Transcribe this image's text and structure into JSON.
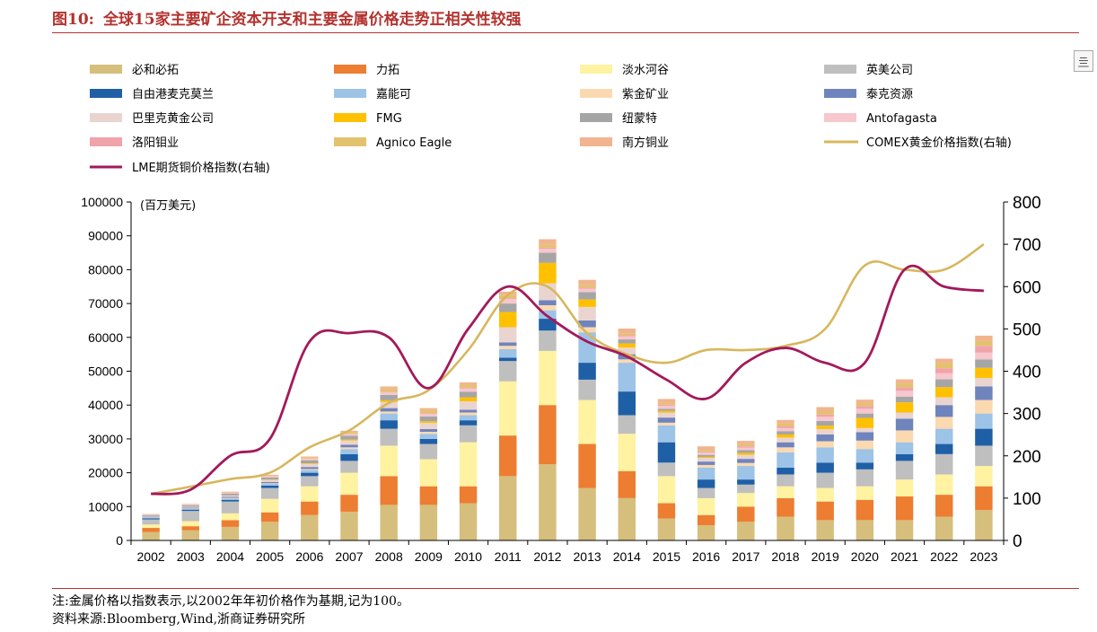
{
  "header": {
    "figure_number": "图10:",
    "title": "全球15家主要矿企资本开支和主要金属价格走势正相关性较强"
  },
  "footer": {
    "note": "注:金属价格以指数表示,以2002年年初价格作为基期,记为100。",
    "source": "资料来源:Bloomberg,Wind,浙商证券研究所"
  },
  "corner_icon": {
    "name": "expand-icon",
    "glyph": "亖"
  },
  "chart_data": {
    "type": "bar",
    "stacked": true,
    "categories": [
      "2002",
      "2003",
      "2004",
      "2005",
      "2006",
      "2007",
      "2008",
      "2009",
      "2010",
      "2011",
      "2012",
      "2013",
      "2014",
      "2015",
      "2016",
      "2017",
      "2018",
      "2019",
      "2020",
      "2021",
      "2022",
      "2023"
    ],
    "ylabel": "(百万美元)",
    "ylim": [
      0,
      100000
    ],
    "yticks": [
      0,
      10000,
      20000,
      30000,
      40000,
      50000,
      60000,
      70000,
      80000,
      90000,
      100000
    ],
    "y2lim": [
      0,
      800
    ],
    "y2ticks": [
      0,
      100,
      200,
      300,
      400,
      500,
      600,
      700,
      800
    ],
    "grid": false,
    "legend_position": "top",
    "series": [
      {
        "name": "必和必拓",
        "color": "#d6be7c",
        "values": [
          2500,
          3000,
          4000,
          5500,
          7500,
          8500,
          10500,
          10500,
          11000,
          19000,
          22500,
          15500,
          12500,
          6500,
          4500,
          5500,
          7000,
          6000,
          6000,
          6000,
          7000,
          9000
        ]
      },
      {
        "name": "力拓",
        "color": "#ed7d31",
        "values": [
          1200,
          1200,
          2000,
          2800,
          4000,
          5000,
          8500,
          5500,
          5000,
          12000,
          17500,
          13000,
          8000,
          4500,
          3000,
          4500,
          5500,
          5500,
          6000,
          7000,
          6500,
          7000
        ]
      },
      {
        "name": "淡水河谷",
        "color": "#fff2a1",
        "values": [
          1000,
          1500,
          2000,
          4000,
          4500,
          6500,
          9000,
          8000,
          13000,
          16000,
          16000,
          13000,
          11000,
          8000,
          5000,
          4000,
          3500,
          4000,
          4000,
          5000,
          6000,
          6000
        ]
      },
      {
        "name": "英美公司",
        "color": "#bfbfbf",
        "values": [
          1500,
          3000,
          3500,
          3200,
          3000,
          3500,
          5000,
          4500,
          5000,
          6000,
          6000,
          6000,
          5500,
          4000,
          3000,
          2500,
          3500,
          4500,
          5000,
          5500,
          6000,
          6000
        ]
      },
      {
        "name": "自由港麦克莫兰",
        "color": "#1f5fa6",
        "values": [
          300,
          400,
          500,
          700,
          1000,
          2000,
          2500,
          1500,
          1500,
          1000,
          3500,
          5000,
          7000,
          6000,
          2500,
          1500,
          2000,
          3000,
          2000,
          2000,
          3000,
          5000
        ]
      },
      {
        "name": "嘉能可",
        "color": "#9dc3e6",
        "values": [
          200,
          300,
          400,
          500,
          800,
          1500,
          2000,
          1500,
          1500,
          2500,
          2500,
          9000,
          8500,
          5000,
          3500,
          4000,
          4500,
          4500,
          4000,
          3500,
          4500,
          4500
        ]
      },
      {
        "name": "紫金矿业",
        "color": "#fbd9b0",
        "values": [
          100,
          100,
          200,
          200,
          300,
          500,
          600,
          600,
          800,
          1000,
          1500,
          1500,
          1000,
          800,
          800,
          900,
          1500,
          1800,
          2500,
          3500,
          3500,
          4000
        ]
      },
      {
        "name": "泰克资源",
        "color": "#6f84bd",
        "values": [
          200,
          200,
          300,
          400,
          600,
          800,
          1000,
          800,
          800,
          1000,
          1500,
          2000,
          1500,
          1500,
          1000,
          1200,
          1500,
          2000,
          2500,
          3500,
          3500,
          4000
        ]
      },
      {
        "name": "巴里克黄金公司",
        "color": "#ead4d0",
        "values": [
          200,
          300,
          400,
          600,
          900,
          1200,
          1800,
          1800,
          2500,
          4500,
          5000,
          4000,
          2000,
          1500,
          1100,
          1200,
          1400,
          1600,
          1200,
          1800,
          2300,
          2500
        ]
      },
      {
        "name": "FMG",
        "color": "#ffc000",
        "values": [
          0,
          0,
          0,
          100,
          200,
          300,
          500,
          500,
          1200,
          4500,
          6000,
          2200,
          1200,
          500,
          300,
          600,
          900,
          1000,
          3000,
          3000,
          3000,
          3000
        ]
      },
      {
        "name": "纽蒙特",
        "color": "#a5a5a5",
        "values": [
          300,
          400,
          500,
          600,
          900,
          1100,
          1600,
          1400,
          1600,
          2500,
          3000,
          2200,
          1200,
          600,
          600,
          800,
          1000,
          1400,
          1300,
          1700,
          2300,
          2500
        ]
      },
      {
        "name": "Antofagasta",
        "color": "#f6c7cd",
        "values": [
          100,
          100,
          200,
          300,
          400,
          500,
          800,
          800,
          1000,
          1300,
          1200,
          1000,
          900,
          900,
          700,
          700,
          900,
          1300,
          1400,
          1700,
          1800,
          2000
        ]
      },
      {
        "name": "洛阳钼业",
        "color": "#f1a3aa",
        "values": [
          50,
          50,
          100,
          100,
          100,
          100,
          200,
          200,
          200,
          200,
          300,
          300,
          300,
          300,
          300,
          400,
          500,
          600,
          800,
          1000,
          1500,
          2000
        ]
      },
      {
        "name": "Agnico Eagle",
        "color": "#e3c26e",
        "values": [
          50,
          100,
          100,
          200,
          300,
          500,
          900,
          900,
          800,
          1000,
          1000,
          800,
          600,
          500,
          500,
          600,
          900,
          1000,
          900,
          1200,
          1500,
          1500
        ]
      },
      {
        "name": "南方铜业",
        "color": "#f2b48f",
        "values": [
          100,
          150,
          200,
          200,
          300,
          400,
          600,
          600,
          800,
          1000,
          1500,
          1500,
          1400,
          1200,
          1000,
          1000,
          1000,
          1200,
          1000,
          1200,
          1300,
          1500
        ]
      }
    ],
    "line_series": [
      {
        "name": "COMEX黄金价格指数(右轴)",
        "color": "#d7b75d",
        "axis": "right",
        "values": [
          110,
          127,
          145,
          160,
          220,
          260,
          325,
          355,
          450,
          580,
          600,
          490,
          440,
          420,
          450,
          450,
          460,
          500,
          650,
          640,
          640,
          700
        ]
      },
      {
        "name": "LME期货铜价格指数(右轴)",
        "color": "#a3195b",
        "axis": "right",
        "values": [
          110,
          120,
          200,
          240,
          470,
          490,
          480,
          360,
          500,
          600,
          530,
          470,
          435,
          380,
          335,
          420,
          455,
          420,
          420,
          640,
          600,
          590
        ]
      }
    ]
  }
}
